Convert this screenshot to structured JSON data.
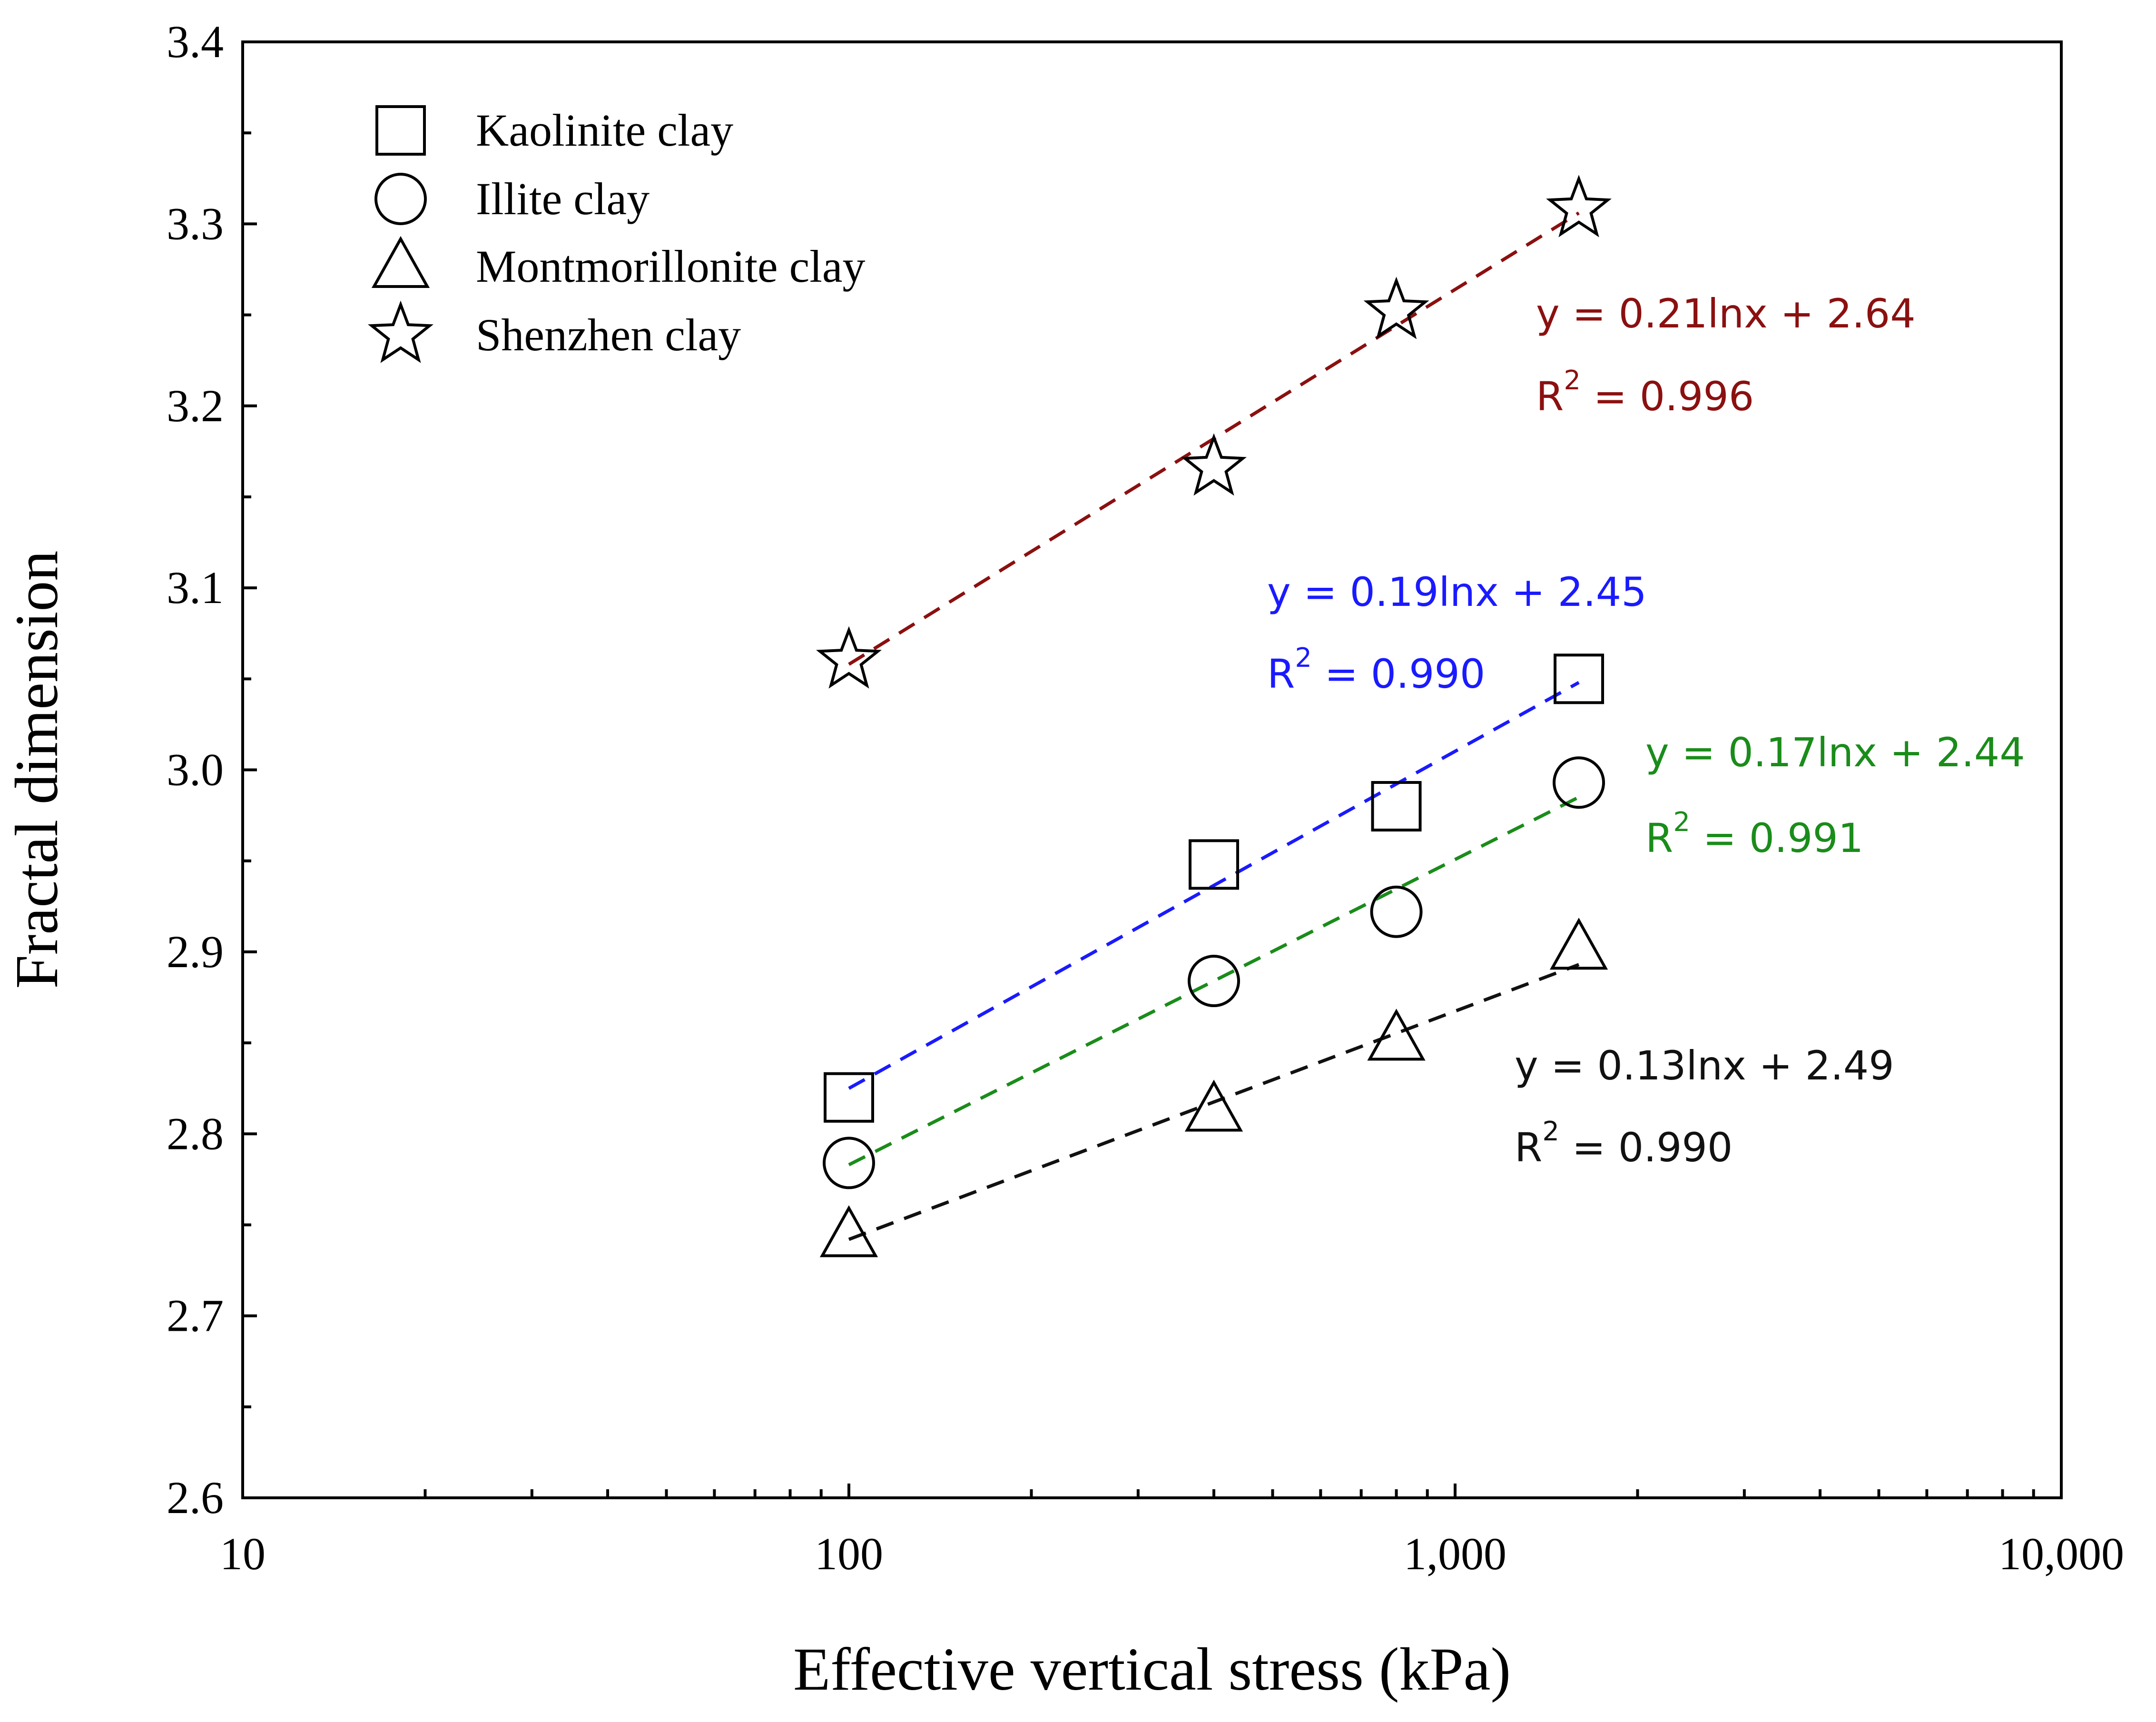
{
  "chart_data": {
    "type": "scatter",
    "xscale": "log",
    "xlabel": "Effective vertical stress (kPa)",
    "ylabel": "Fractal dimension",
    "xlim": [
      10,
      10000
    ],
    "ylim": [
      2.6,
      3.4
    ],
    "x_ticks": [
      {
        "value": 10,
        "label": "10"
      },
      {
        "value": 100,
        "label": "100"
      },
      {
        "value": 1000,
        "label": "1,000"
      },
      {
        "value": 10000,
        "label": "10,000"
      }
    ],
    "y_ticks": [
      {
        "value": 2.6,
        "label": "2.6"
      },
      {
        "value": 2.7,
        "label": "2.7"
      },
      {
        "value": 2.8,
        "label": "2.8"
      },
      {
        "value": 2.9,
        "label": "2.9"
      },
      {
        "value": 3.0,
        "label": "3.0"
      },
      {
        "value": 3.1,
        "label": "3.1"
      },
      {
        "value": 3.2,
        "label": "3.2"
      },
      {
        "value": 3.3,
        "label": "3.3"
      },
      {
        "value": 3.4,
        "label": "3.4"
      }
    ],
    "legend_position": "top-left",
    "series": [
      {
        "name": "Kaolinite clay",
        "marker": "square",
        "x": [
          100,
          400,
          800,
          1600
        ],
        "y": [
          2.82,
          2.948,
          2.98,
          3.05
        ],
        "fit_color": "#1a1aff",
        "fit_x": [
          100,
          1600
        ],
        "fit_y": [
          2.825,
          3.048
        ],
        "equation": "y = 0.19lnx + 2.45",
        "r2_label": "R",
        "r2_sup": "2",
        "r2_value": " = 0.990"
      },
      {
        "name": "Illite clay",
        "marker": "circle",
        "x": [
          100,
          400,
          800,
          1600
        ],
        "y": [
          2.784,
          2.884,
          2.922,
          2.993
        ],
        "fit_color": "#1a8c1a",
        "fit_x": [
          100,
          1600
        ],
        "fit_y": [
          2.783,
          2.985
        ],
        "equation": "y = 0.17lnx + 2.44",
        "r2_label": "R",
        "r2_sup": "2",
        "r2_value": " = 0.991"
      },
      {
        "name": "Montmorillonite clay",
        "marker": "triangle",
        "x": [
          100,
          400,
          800,
          1600
        ],
        "y": [
          2.744,
          2.813,
          2.852,
          2.902
        ],
        "fit_color": "#111111",
        "fit_x": [
          100,
          1600
        ],
        "fit_y": [
          2.742,
          2.893
        ],
        "equation": "y = 0.13lnx + 2.49",
        "r2_label": "R",
        "r2_sup": "2",
        "r2_value": " = 0.990"
      },
      {
        "name": "Shenzhen clay",
        "marker": "star",
        "x": [
          100,
          400,
          800,
          1600
        ],
        "y": [
          3.06,
          3.166,
          3.252,
          3.308
        ],
        "fit_color": "#8b1010",
        "fit_x": [
          100,
          1600
        ],
        "fit_y": [
          3.058,
          3.306
        ],
        "equation": "y = 0.21lnx + 2.64",
        "r2_label": "R",
        "r2_sup": "2",
        "r2_value": " = 0.996"
      }
    ]
  }
}
